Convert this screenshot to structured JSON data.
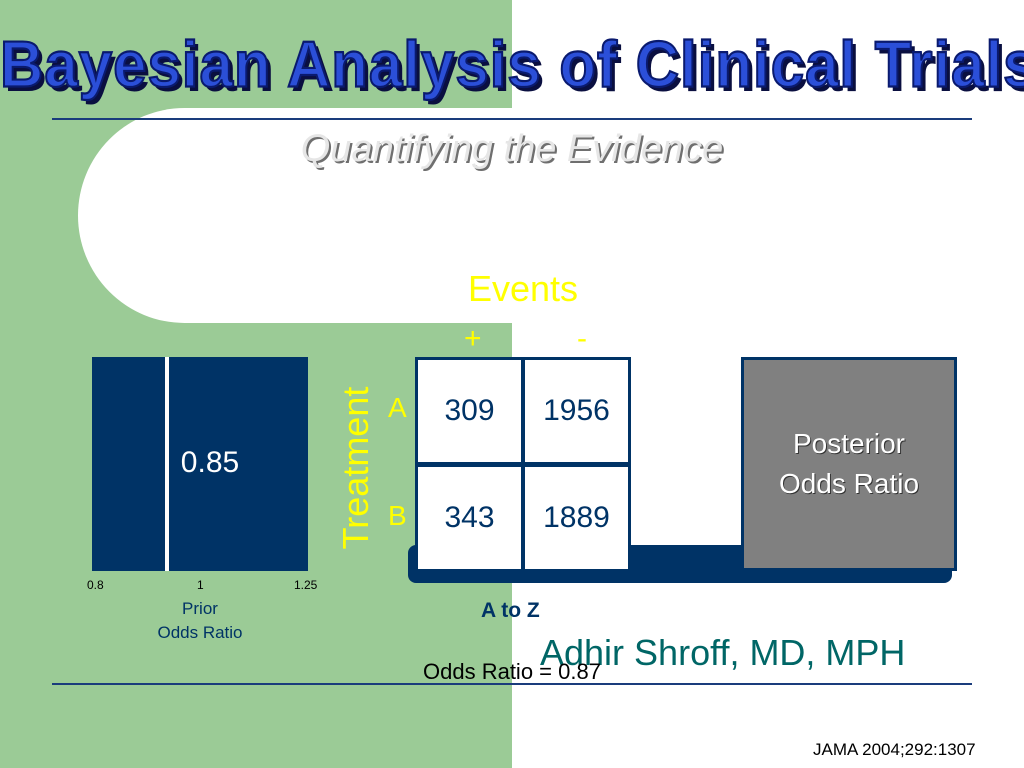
{
  "slide": {
    "title": "Bayesian Analysis of Clinical Trials",
    "subtitle": "Quantifying the Evidence",
    "prior": {
      "value": "0.85",
      "ticks": [
        "0.8",
        "1",
        "1.25"
      ],
      "label_line1": "Prior",
      "label_line2": "Odds Ratio"
    },
    "table": {
      "events_label": "Events",
      "col_plus": "+",
      "col_minus": "-",
      "treatment_label": "Treatment",
      "row_a": "A",
      "row_b": "B",
      "a_plus": "309",
      "a_minus": "1956",
      "b_plus": "343",
      "b_minus": "1889"
    },
    "posterior": {
      "line1": "Posterior",
      "line2": "Odds Ratio"
    },
    "trial_name": "A to Z",
    "author": "Adhir Shroff, MD, MPH",
    "odds_ratio": "Odds Ratio = 0.87",
    "citation": "JAMA 2004;292:1307"
  },
  "colors": {
    "green_panel": "#9bcb96",
    "navy": "#003366",
    "title_blue": "#2b4fd8",
    "yellow": "#ffff00",
    "gray_box": "#808080",
    "teal": "#006666"
  }
}
